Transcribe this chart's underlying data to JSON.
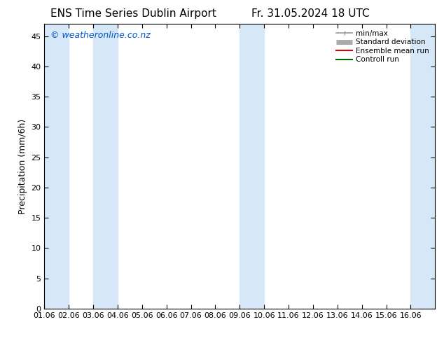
{
  "title_left": "ENS Time Series Dublin Airport",
  "title_right": "Fr. 31.05.2024 18 UTC",
  "ylabel": "Precipitation (mm/6h)",
  "xlim": [
    0,
    16
  ],
  "ylim": [
    0,
    47
  ],
  "yticks": [
    0,
    5,
    10,
    15,
    20,
    25,
    30,
    35,
    40,
    45
  ],
  "xtick_labels": [
    "01.06",
    "02.06",
    "03.06",
    "04.06",
    "05.06",
    "06.06",
    "07.06",
    "08.06",
    "09.06",
    "10.06",
    "11.06",
    "12.06",
    "13.06",
    "14.06",
    "15.06",
    "16.06"
  ],
  "watermark": "© weatheronline.co.nz",
  "watermark_color": "#0055cc",
  "bg_color": "#ffffff",
  "plot_bg_color": "#ffffff",
  "shade_color": "#d6e8f7",
  "shade_regions": [
    [
      0,
      1
    ],
    [
      2,
      3
    ],
    [
      8,
      9
    ],
    [
      15,
      16
    ]
  ],
  "legend_entries": [
    {
      "label": "min/max",
      "color": "#999999",
      "lw": 1.2
    },
    {
      "label": "Standard deviation",
      "color": "#aaaaaa",
      "lw": 5
    },
    {
      "label": "Ensemble mean run",
      "color": "#dd0000",
      "lw": 1.5
    },
    {
      "label": "Controll run",
      "color": "#006600",
      "lw": 1.5
    }
  ],
  "title_fontsize": 11,
  "tick_fontsize": 8,
  "ylabel_fontsize": 9,
  "watermark_fontsize": 9,
  "legend_fontsize": 7.5
}
